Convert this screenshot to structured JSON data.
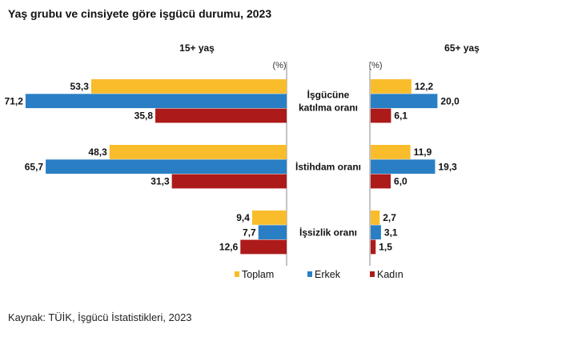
{
  "chart_data": {
    "type": "bar",
    "title": "Yaş grubu ve cinsiyete göre işgücü durumu, 2023",
    "unit_label": "(%)",
    "categories": [
      "İşgücüne katılma oranı",
      "İstihdam oranı",
      "İşsizlik oranı"
    ],
    "category_lines": [
      [
        "İşgücüne",
        "katılma oranı"
      ],
      [
        "İstihdam oranı"
      ],
      [
        "İşsizlik oranı"
      ]
    ],
    "panels": [
      {
        "title": "15+ yaş",
        "series": [
          {
            "name": "Toplam",
            "values": [
              53.3,
              48.3,
              9.4
            ],
            "labels": [
              "53,3",
              "48,3",
              "9,4"
            ]
          },
          {
            "name": "Erkek",
            "values": [
              71.2,
              65.7,
              7.7
            ],
            "labels": [
              "71,2",
              "65,7",
              "7,7"
            ]
          },
          {
            "name": "Kadın",
            "values": [
              35.8,
              31.3,
              12.6
            ],
            "labels": [
              "35,8",
              "31,3",
              "12,6"
            ]
          }
        ]
      },
      {
        "title": "65+ yaş",
        "series": [
          {
            "name": "Toplam",
            "values": [
              12.2,
              11.9,
              2.7
            ],
            "labels": [
              "12,2",
              "11,9",
              "2,7"
            ]
          },
          {
            "name": "Erkek",
            "values": [
              20.0,
              19.3,
              3.1
            ],
            "labels": [
              "20,0",
              "19,3",
              "3,1"
            ]
          },
          {
            "name": "Kadın",
            "values": [
              6.1,
              6.0,
              1.5
            ],
            "labels": [
              "6,1",
              "6,0",
              "1,5"
            ]
          }
        ]
      }
    ],
    "legend": [
      "Toplam",
      "Erkek",
      "Kadın"
    ],
    "legend_position": "bottom",
    "colors": {
      "Toplam": "#f9bc2b",
      "Erkek": "#2a7fc4",
      "Kadın": "#ad1a1a"
    },
    "grid": false
  },
  "source": "Kaynak: TÜİK, İşgücü İstatistikleri, 2023"
}
